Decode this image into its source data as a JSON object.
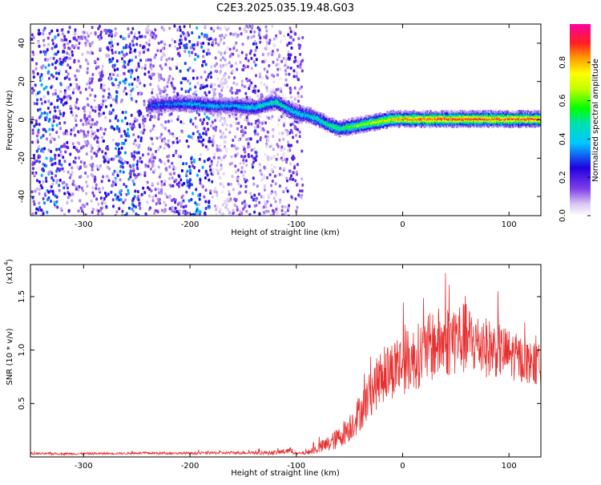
{
  "title": "C2E3.2025.035.19.48.G03",
  "colorbar": {
    "label": "Normalized spectral amplitude",
    "ticks": [
      "0.0",
      "0.2",
      "0.4",
      "0.6",
      "0.8"
    ],
    "tick_values": [
      0.0,
      0.2,
      0.4,
      0.6,
      0.8
    ]
  },
  "chart_data": [
    {
      "type": "heatmap",
      "title": "",
      "xlabel": "Height of straight line (km)",
      "ylabel": "Frequency (Hz)",
      "xlim": [
        -350,
        130
      ],
      "ylim": [
        -50,
        50
      ],
      "xticks": [
        "-300",
        "-200",
        "-100",
        "0",
        "100"
      ],
      "xtick_values": [
        -300,
        -200,
        -100,
        0,
        100
      ],
      "yticks": [
        "-40",
        "-20",
        "0",
        "20",
        "40"
      ],
      "ytick_values": [
        -40,
        -20,
        0,
        20,
        40
      ],
      "zlim": [
        0,
        1
      ],
      "noise_region_x": [
        -350,
        -95
      ],
      "carrier_track": {
        "x": [
          -240,
          -220,
          -200,
          -180,
          -160,
          -140,
          -120,
          -100,
          -90,
          -80,
          -70,
          -60,
          -50,
          -40,
          -30,
          -20,
          -10,
          0,
          20,
          40,
          60,
          80,
          100,
          130
        ],
        "freq": [
          8,
          9,
          9,
          8,
          8,
          7,
          10,
          4,
          3,
          1,
          -2,
          -4,
          -3,
          -2,
          -1,
          0,
          1,
          1,
          1,
          1,
          1,
          1,
          1,
          1
        ],
        "amplitude": [
          0.3,
          0.35,
          0.4,
          0.4,
          0.4,
          0.45,
          0.5,
          0.45,
          0.45,
          0.5,
          0.55,
          0.55,
          0.6,
          0.65,
          0.7,
          0.75,
          0.8,
          0.85,
          0.9,
          0.9,
          0.9,
          0.9,
          0.9,
          0.9
        ]
      }
    },
    {
      "type": "line",
      "title": "",
      "xlabel": "Height of straight line (km)",
      "ylabel": "SNR (10 * v/v)",
      "y_multiplier": "(x10",
      "y_multiplier_exp": "4",
      "xlim": [
        -350,
        130
      ],
      "ylim": [
        0,
        1.8
      ],
      "xticks": [
        "-300",
        "-200",
        "-100",
        "0",
        "100"
      ],
      "xtick_values": [
        -300,
        -200,
        -100,
        0,
        100
      ],
      "yticks": [
        "0.5",
        "1.0",
        "1.5"
      ],
      "ytick_values": [
        0.5,
        1.0,
        1.5
      ],
      "series": [
        {
          "color": "#e83030",
          "x": [
            -350,
            -300,
            -250,
            -200,
            -150,
            -120,
            -105,
            -100,
            -90,
            -80,
            -70,
            -60,
            -50,
            -40,
            -30,
            -20,
            -10,
            0,
            10,
            20,
            30,
            40,
            50,
            60,
            70,
            80,
            90,
            100,
            110,
            120,
            130
          ],
          "y": [
            0.03,
            0.03,
            0.035,
            0.035,
            0.04,
            0.04,
            0.06,
            0.03,
            0.04,
            0.08,
            0.12,
            0.18,
            0.28,
            0.42,
            0.6,
            0.75,
            0.82,
            0.88,
            0.92,
            0.98,
            1.05,
            1.08,
            1.12,
            1.1,
            1.06,
            1.02,
            1.0,
            0.96,
            0.92,
            0.88,
            0.85
          ],
          "spread": [
            0.01,
            0.01,
            0.01,
            0.012,
            0.015,
            0.02,
            0.03,
            0.01,
            0.02,
            0.05,
            0.08,
            0.1,
            0.14,
            0.18,
            0.22,
            0.26,
            0.28,
            0.3,
            0.3,
            0.32,
            0.34,
            0.34,
            0.36,
            0.34,
            0.3,
            0.28,
            0.26,
            0.24,
            0.22,
            0.2,
            0.2
          ]
        }
      ]
    }
  ]
}
